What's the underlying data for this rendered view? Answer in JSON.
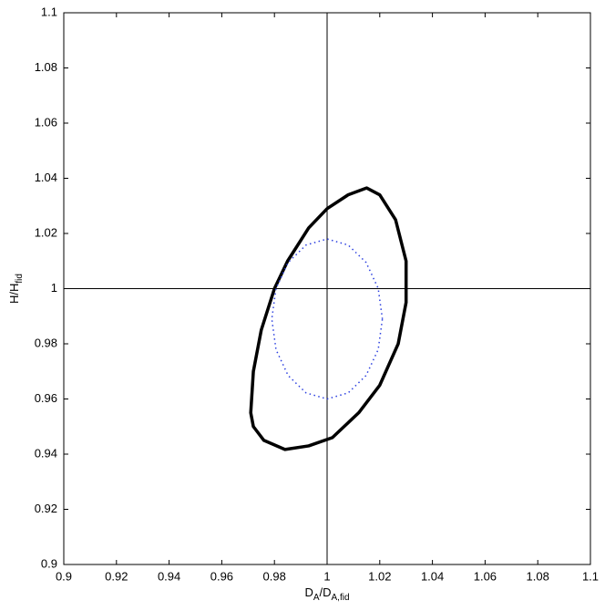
{
  "chart_data": {
    "type": "line",
    "xlabel": [
      {
        "text": "D"
      },
      {
        "text": "A",
        "sub": true
      },
      {
        "text": "/D"
      },
      {
        "text": "A,fid",
        "sub": true
      }
    ],
    "ylabel": [
      {
        "text": "H/H"
      },
      {
        "text": "fid",
        "sub": true
      }
    ],
    "xlim": [
      0.9,
      1.1
    ],
    "ylim": [
      0.9,
      1.1
    ],
    "xticks": [
      0.9,
      0.92,
      0.94,
      0.96,
      0.98,
      1,
      1.02,
      1.04,
      1.06,
      1.08,
      1.1
    ],
    "yticks": [
      0.9,
      0.92,
      0.94,
      0.96,
      0.98,
      1,
      1.02,
      1.04,
      1.06,
      1.08,
      1.1
    ],
    "reference_lines": {
      "x": 1,
      "y": 1
    },
    "series": [
      {
        "color": "#000000",
        "line_style": "solid",
        "line_width": 3.5,
        "closed": true,
        "x": [
          0.971,
          0.972,
          0.975,
          0.98,
          0.985,
          0.993,
          1.0,
          1.008,
          1.015,
          1.02,
          1.026,
          1.03,
          1.03,
          1.027,
          1.02,
          1.012,
          1.002,
          0.993,
          0.984,
          0.976,
          0.972
        ],
        "y": [
          0.955,
          0.97,
          0.985,
          1.0,
          1.01,
          1.022,
          1.029,
          1.034,
          1.0365,
          1.034,
          1.025,
          1.01,
          0.995,
          0.98,
          0.965,
          0.955,
          0.946,
          0.943,
          0.9417,
          0.945,
          0.95
        ]
      },
      {
        "color": "#2b3fe0",
        "line_style": "dotted",
        "line_width": 1.5,
        "closed": true,
        "x": [
          1.021,
          1.0194,
          1.0148,
          1.008,
          1.0,
          0.992,
          0.9852,
          0.9806,
          0.979,
          0.9806,
          0.9852,
          0.992,
          1.0,
          1.008,
          1.0148,
          1.0194
        ],
        "y": [
          0.989,
          1.0001,
          1.0095,
          1.0158,
          1.018,
          1.0158,
          1.0095,
          1.0001,
          0.989,
          0.9779,
          0.9685,
          0.9622,
          0.96,
          0.9622,
          0.9685,
          0.9779
        ]
      }
    ]
  }
}
